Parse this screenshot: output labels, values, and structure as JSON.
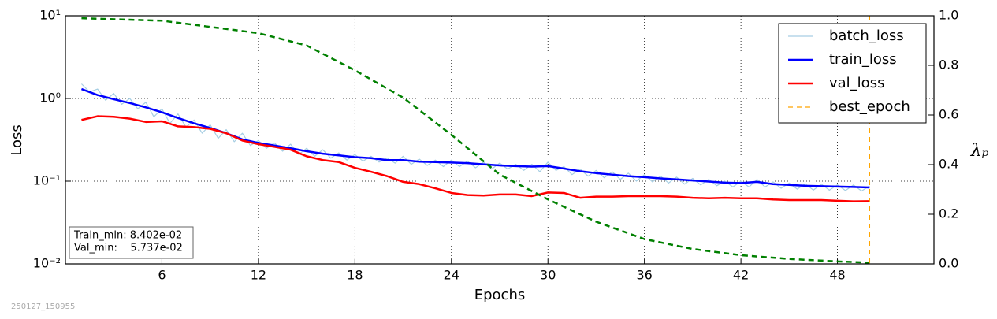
{
  "chart_data": {
    "type": "line",
    "xlabel": "Epochs",
    "ylabel": "Loss",
    "y2label": "λₚ",
    "xlim": [
      0,
      54
    ],
    "xticks": [
      6,
      12,
      18,
      24,
      30,
      36,
      42,
      48
    ],
    "ylim": [
      0.01,
      10
    ],
    "ylog": true,
    "yticks": [
      {
        "value": 0.01,
        "label": "10⁻²"
      },
      {
        "value": 0.1,
        "label": "10⁻¹"
      },
      {
        "value": 1,
        "label": "10⁰"
      },
      {
        "value": 10,
        "label": "10¹"
      }
    ],
    "y2lim": [
      0,
      1
    ],
    "y2ticks": [
      {
        "value": 0,
        "label": "0.0"
      },
      {
        "value": 0.2,
        "label": "0.2"
      },
      {
        "value": 0.4,
        "label": "0.4"
      },
      {
        "value": 0.6,
        "label": "0.6"
      },
      {
        "value": 0.8,
        "label": "0.8"
      },
      {
        "value": 1,
        "label": "1.0"
      }
    ],
    "grid": true,
    "legend": "upper right",
    "y2color": "#008000",
    "x": [
      1,
      2,
      3,
      4,
      5,
      6,
      7,
      8,
      9,
      10,
      11,
      12,
      13,
      14,
      15,
      16,
      17,
      18,
      19,
      20,
      21,
      22,
      23,
      24,
      25,
      26,
      27,
      28,
      29,
      30,
      31,
      32,
      33,
      34,
      35,
      36,
      37,
      38,
      39,
      40,
      41,
      42,
      43,
      44,
      45,
      46,
      47,
      48,
      49,
      50
    ],
    "series": [
      {
        "name": "batch_loss",
        "color": "#a6cee3",
        "width": 1.2,
        "x": [
          1,
          1.5,
          2,
          2.5,
          3,
          3.5,
          4,
          4.5,
          5,
          5.5,
          6,
          6.5,
          7,
          7.5,
          8,
          8.5,
          9,
          9.5,
          10,
          10.5,
          11,
          11.5,
          12,
          12.5,
          13,
          13.5,
          14,
          14.5,
          15,
          15.5,
          16,
          16.5,
          17,
          17.5,
          18,
          18.5,
          19,
          19.5,
          20,
          20.5,
          21,
          21.5,
          22,
          22.5,
          23,
          23.5,
          24,
          24.5,
          25,
          25.5,
          26,
          26.5,
          27,
          27.5,
          28,
          28.5,
          29,
          29.5,
          30,
          30.5,
          31,
          31.5,
          32,
          32.5,
          33,
          33.5,
          34,
          34.5,
          35,
          35.5,
          36,
          36.5,
          37,
          37.5,
          38,
          38.5,
          39,
          39.5,
          40,
          40.5,
          41,
          41.5,
          42,
          42.5,
          43,
          43.5,
          44,
          44.5,
          45,
          45.5,
          46,
          46.5,
          47,
          47.5,
          48,
          48.5,
          49,
          49.5,
          50
        ],
        "values": [
          1.5,
          1.2,
          1.3,
          0.95,
          1.15,
          0.85,
          1.0,
          0.75,
          0.9,
          0.6,
          0.75,
          0.5,
          0.65,
          0.45,
          0.55,
          0.38,
          0.48,
          0.33,
          0.42,
          0.3,
          0.38,
          0.27,
          0.31,
          0.25,
          0.29,
          0.23,
          0.28,
          0.21,
          0.25,
          0.2,
          0.24,
          0.19,
          0.22,
          0.18,
          0.21,
          0.175,
          0.2,
          0.17,
          0.19,
          0.165,
          0.2,
          0.16,
          0.185,
          0.155,
          0.18,
          0.15,
          0.18,
          0.15,
          0.175,
          0.145,
          0.17,
          0.14,
          0.165,
          0.14,
          0.16,
          0.135,
          0.16,
          0.13,
          0.17,
          0.135,
          0.15,
          0.12,
          0.14,
          0.115,
          0.135,
          0.11,
          0.13,
          0.105,
          0.125,
          0.1,
          0.12,
          0.098,
          0.115,
          0.095,
          0.112,
          0.092,
          0.108,
          0.09,
          0.105,
          0.088,
          0.1,
          0.085,
          0.1,
          0.085,
          0.105,
          0.085,
          0.098,
          0.082,
          0.095,
          0.08,
          0.093,
          0.078,
          0.092,
          0.078,
          0.09,
          0.077,
          0.09,
          0.076,
          0.088
        ]
      },
      {
        "name": "train_loss",
        "color": "#0000ff",
        "width": 2.5,
        "values": [
          1.3,
          1.1,
          0.98,
          0.88,
          0.78,
          0.68,
          0.58,
          0.5,
          0.44,
          0.38,
          0.32,
          0.29,
          0.27,
          0.25,
          0.23,
          0.215,
          0.205,
          0.195,
          0.19,
          0.18,
          0.18,
          0.172,
          0.17,
          0.168,
          0.165,
          0.16,
          0.155,
          0.152,
          0.15,
          0.152,
          0.142,
          0.132,
          0.125,
          0.12,
          0.115,
          0.112,
          0.108,
          0.105,
          0.102,
          0.099,
          0.096,
          0.095,
          0.098,
          0.092,
          0.09,
          0.088,
          0.087,
          0.086,
          0.085,
          0.08402
        ]
      },
      {
        "name": "val_loss",
        "color": "#ff0000",
        "width": 2.5,
        "values": [
          0.55,
          0.61,
          0.6,
          0.57,
          0.52,
          0.53,
          0.46,
          0.45,
          0.43,
          0.38,
          0.31,
          0.28,
          0.26,
          0.24,
          0.2,
          0.18,
          0.17,
          0.145,
          0.13,
          0.115,
          0.098,
          0.092,
          0.082,
          0.072,
          0.068,
          0.067,
          0.069,
          0.069,
          0.066,
          0.073,
          0.072,
          0.063,
          0.065,
          0.065,
          0.066,
          0.066,
          0.066,
          0.065,
          0.063,
          0.062,
          0.063,
          0.062,
          0.062,
          0.06,
          0.059,
          0.059,
          0.059,
          0.058,
          0.057,
          0.05737
        ]
      },
      {
        "color": "#008000",
        "width": 2.5,
        "style": "dashed",
        "axis": "y2",
        "x": [
          1,
          6,
          12,
          15,
          18,
          21,
          24,
          27,
          30,
          33,
          36,
          39,
          42,
          45,
          48,
          50
        ],
        "values": [
          0.99,
          0.98,
          0.93,
          0.88,
          0.78,
          0.67,
          0.52,
          0.36,
          0.26,
          0.17,
          0.1,
          0.06,
          0.035,
          0.02,
          0.01,
          0.005
        ]
      }
    ],
    "vline": {
      "name": "best_epoch",
      "x": 50,
      "color": "#ffa500",
      "style": "dashed"
    },
    "annotations": [
      "Train_min: 8.402e-02",
      "Val_min:    5.737e-02"
    ],
    "footer": "250127_150955"
  }
}
